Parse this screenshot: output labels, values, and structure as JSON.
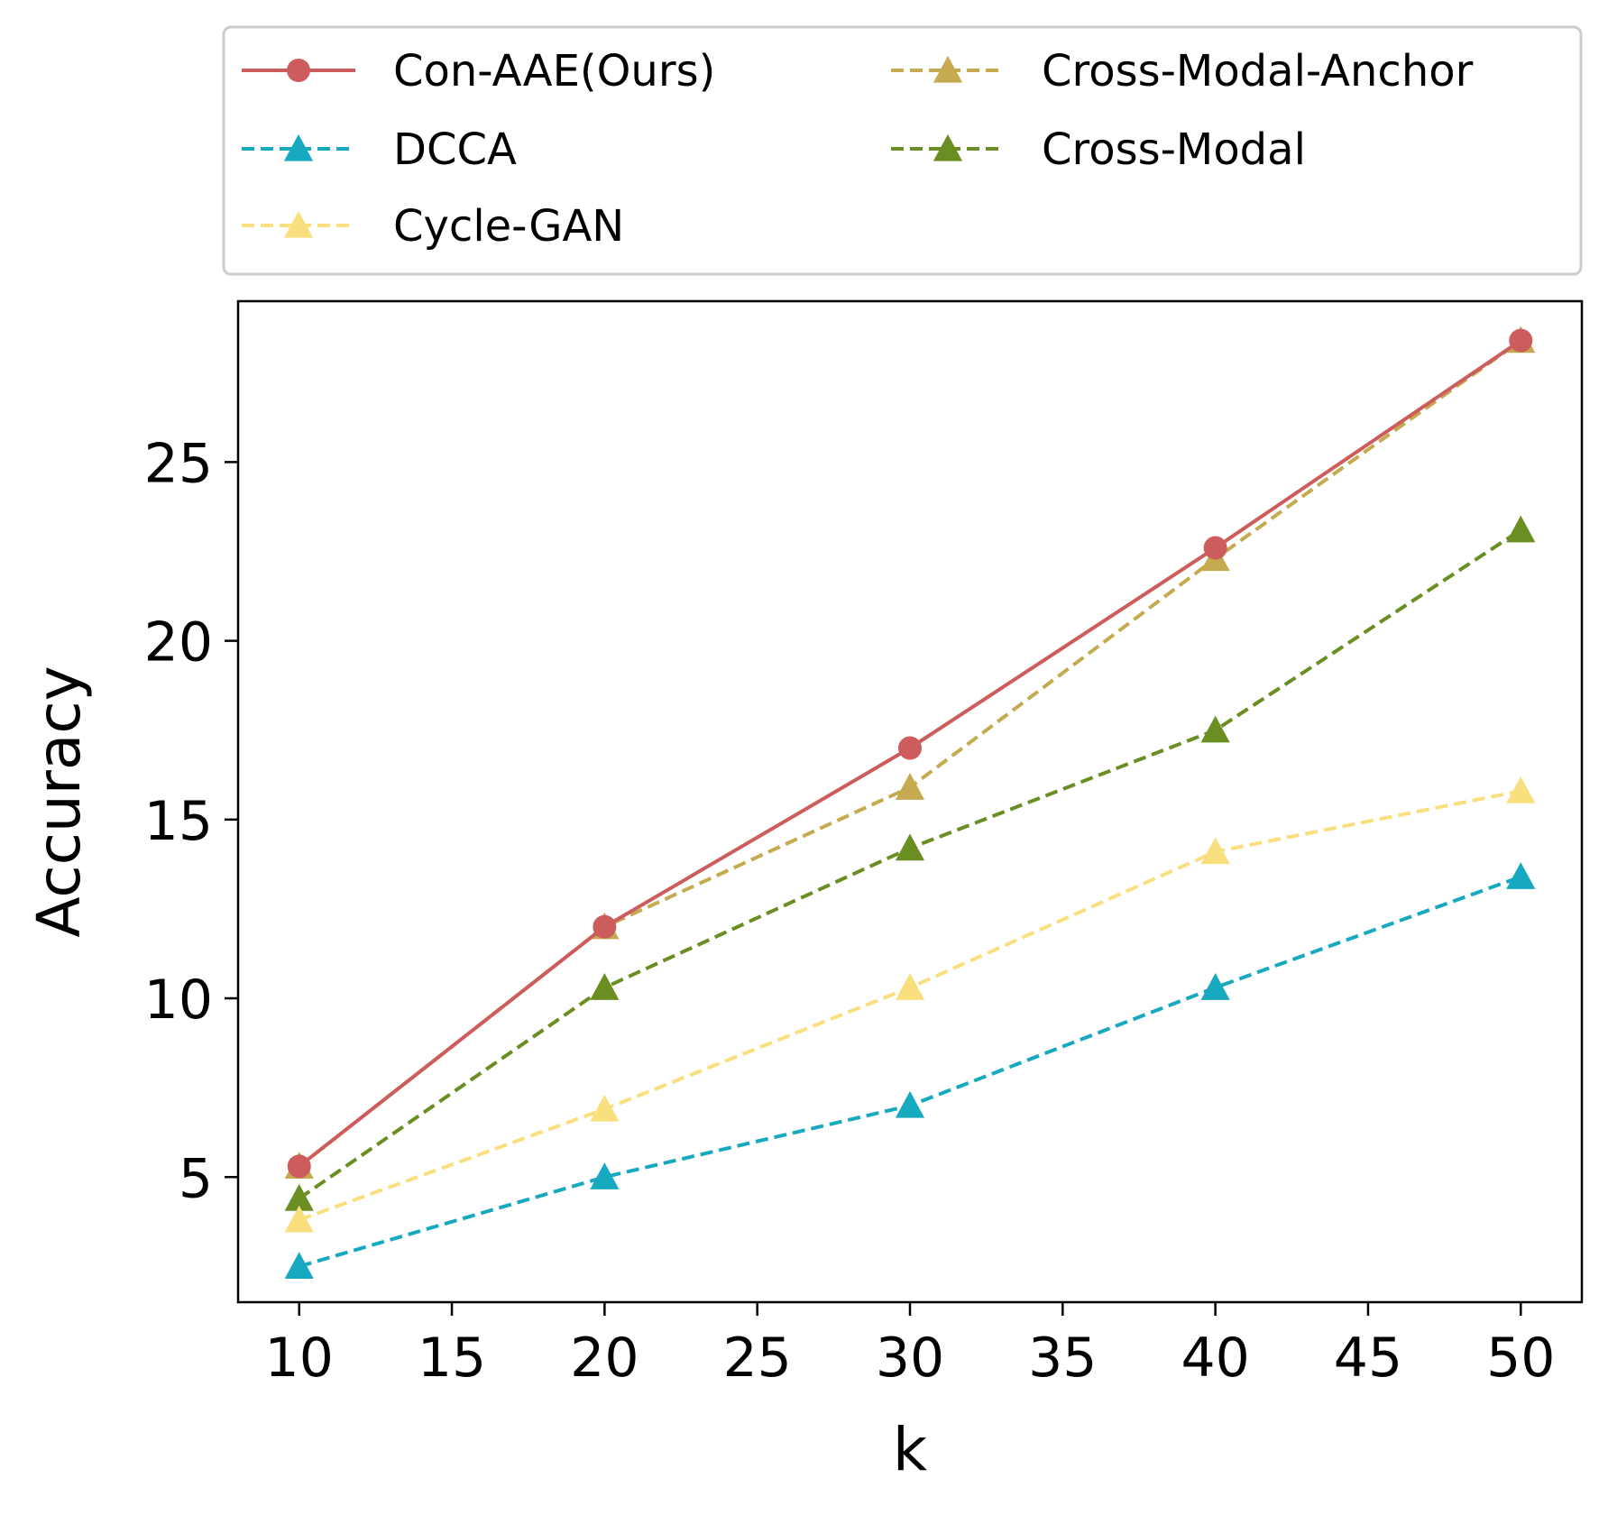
{
  "chart_data": {
    "type": "line",
    "title": "",
    "xlabel": "k",
    "ylabel": "Accuracy",
    "x": [
      10,
      20,
      30,
      40,
      50
    ],
    "xlim": [
      8,
      52
    ],
    "ylim": [
      1.5,
      29.5
    ],
    "xticks": [
      10,
      15,
      20,
      25,
      30,
      35,
      40,
      45,
      50
    ],
    "yticks": [
      5,
      10,
      15,
      20,
      25
    ],
    "grid": false,
    "legend_position": "top (outside plot)",
    "series": [
      {
        "name": "Con-AAE(Ours)",
        "values": [
          5.3,
          12.0,
          17.0,
          22.6,
          28.4
        ],
        "color": "#cd5c5c",
        "linestyle": "solid",
        "marker": "circle"
      },
      {
        "name": "DCCA",
        "values": [
          2.5,
          5.0,
          7.0,
          10.3,
          13.4
        ],
        "color": "#17a9c0",
        "linestyle": "dashed",
        "marker": "triangle"
      },
      {
        "name": "Cycle-GAN",
        "values": [
          3.8,
          6.9,
          10.3,
          14.1,
          15.8
        ],
        "color": "#fadf7e",
        "linestyle": "dashed",
        "marker": "triangle"
      },
      {
        "name": "Cross-Modal-Anchor",
        "values": [
          5.3,
          12.0,
          15.9,
          22.3,
          28.4
        ],
        "color": "#c5aa4f",
        "linestyle": "dashed",
        "marker": "triangle"
      },
      {
        "name": "Cross-Modal",
        "values": [
          4.4,
          10.3,
          14.2,
          17.5,
          23.1
        ],
        "color": "#6b8e23",
        "linestyle": "dashed",
        "marker": "triangle"
      }
    ]
  }
}
